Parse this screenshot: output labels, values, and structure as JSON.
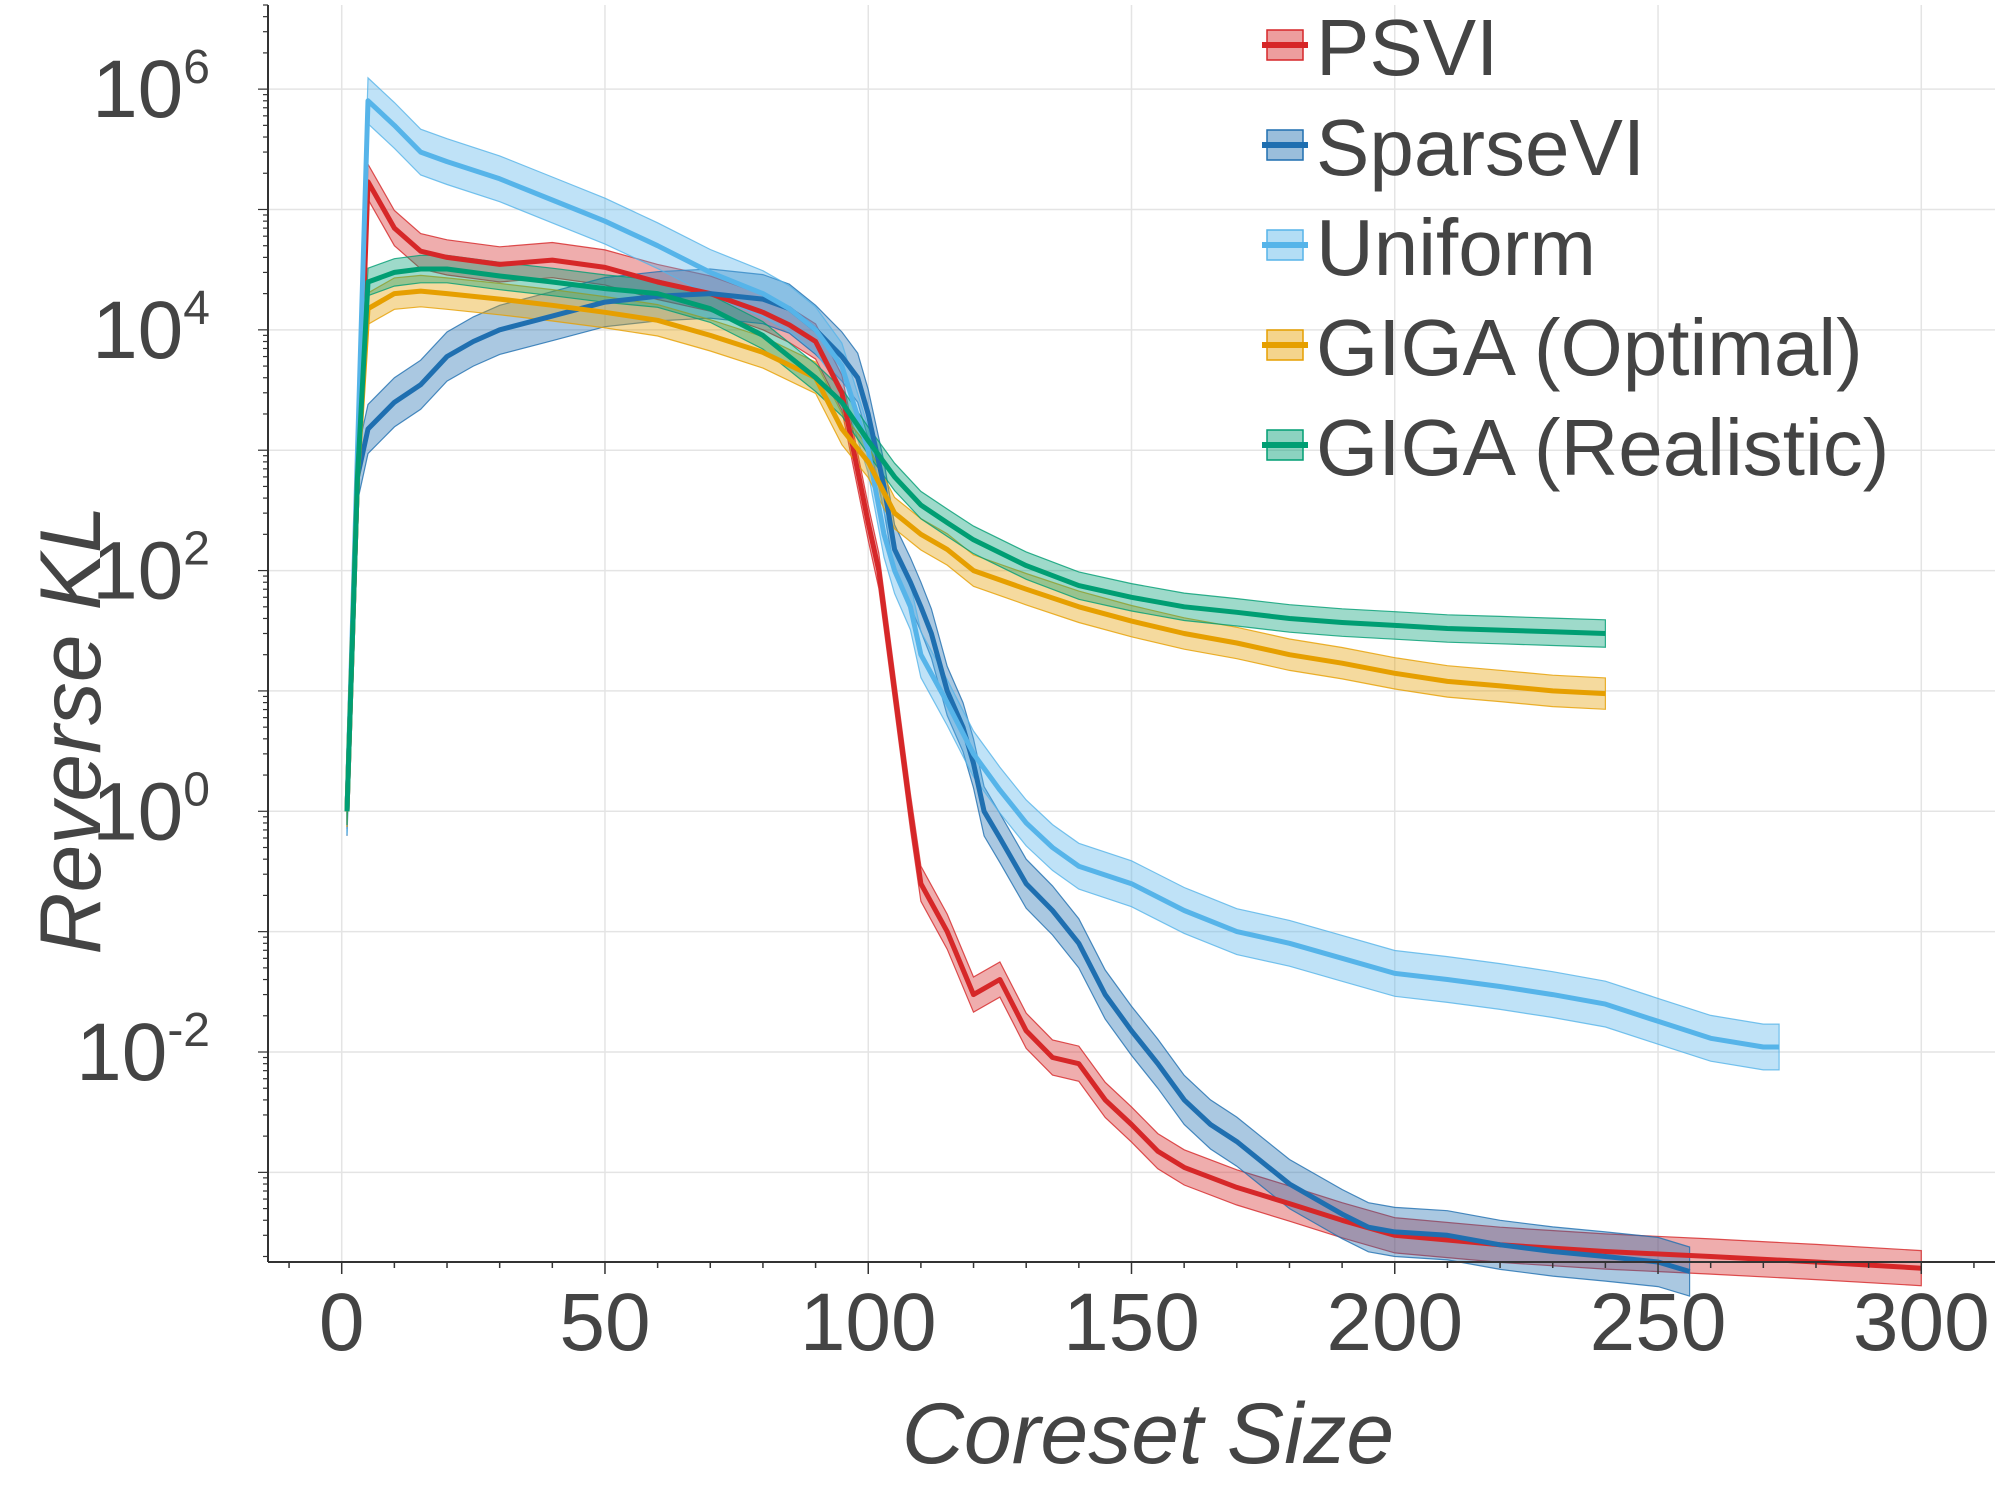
{
  "chart_data": {
    "type": "line",
    "xlabel": "Coreset Size",
    "ylabel": "Reverse KL",
    "x_scale": "linear",
    "y_scale": "log",
    "xlim": [
      -14,
      314
    ],
    "ylim": [
      0.00018,
      5000000
    ],
    "x_ticks": [
      0,
      50,
      100,
      150,
      200,
      250,
      300
    ],
    "x_tick_labels": [
      "0",
      "50",
      "100",
      "150",
      "200",
      "250",
      "300"
    ],
    "y_ticks": [
      0.01,
      1,
      100,
      10000,
      1000000
    ],
    "y_tick_labels": [
      {
        "base": "10",
        "exp": "-2"
      },
      {
        "base": "10",
        "exp": "0"
      },
      {
        "base": "10",
        "exp": "2"
      },
      {
        "base": "10",
        "exp": "4"
      },
      {
        "base": "10",
        "exp": "6"
      }
    ],
    "grid": true,
    "legend_position": "top-right",
    "series": [
      {
        "name": "PSVI",
        "color": "#d62728",
        "points": [
          [
            1,
            1
          ],
          [
            3,
            600
          ],
          [
            5,
            170000
          ],
          [
            10,
            70000
          ],
          [
            15,
            45000
          ],
          [
            20,
            40000
          ],
          [
            30,
            35000
          ],
          [
            40,
            38000
          ],
          [
            50,
            33000
          ],
          [
            60,
            25000
          ],
          [
            70,
            20000
          ],
          [
            80,
            14000
          ],
          [
            85,
            11000
          ],
          [
            90,
            8000
          ],
          [
            95,
            3000
          ],
          [
            100,
            250
          ],
          [
            102,
            100
          ],
          [
            105,
            10
          ],
          [
            108,
            1
          ],
          [
            110,
            0.25
          ],
          [
            115,
            0.1
          ],
          [
            120,
            0.03
          ],
          [
            125,
            0.04
          ],
          [
            130,
            0.015
          ],
          [
            135,
            0.009
          ],
          [
            140,
            0.008
          ],
          [
            145,
            0.004
          ],
          [
            150,
            0.0025
          ],
          [
            155,
            0.0015
          ],
          [
            160,
            0.0011
          ],
          [
            170,
            0.00075
          ],
          [
            180,
            0.00055
          ],
          [
            190,
            0.0004
          ],
          [
            200,
            0.0003
          ],
          [
            220,
            0.00025
          ],
          [
            240,
            0.00022
          ],
          [
            260,
            0.0002
          ],
          [
            280,
            0.00018
          ],
          [
            300,
            0.00016
          ]
        ],
        "band_ratio": 1.4
      },
      {
        "name": "SparseVI",
        "color": "#1f6fb0",
        "points": [
          [
            1,
            1
          ],
          [
            3,
            600
          ],
          [
            5,
            1500
          ],
          [
            10,
            2500
          ],
          [
            15,
            3500
          ],
          [
            20,
            6000
          ],
          [
            25,
            8000
          ],
          [
            30,
            10000
          ],
          [
            40,
            13000
          ],
          [
            50,
            17000
          ],
          [
            60,
            19000
          ],
          [
            70,
            20000
          ],
          [
            80,
            18000
          ],
          [
            85,
            15000
          ],
          [
            90,
            10000
          ],
          [
            95,
            6000
          ],
          [
            98,
            4000
          ],
          [
            100,
            2000
          ],
          [
            103,
            500
          ],
          [
            105,
            150
          ],
          [
            108,
            80
          ],
          [
            110,
            50
          ],
          [
            112,
            30
          ],
          [
            115,
            10
          ],
          [
            118,
            5
          ],
          [
            120,
            2.5
          ],
          [
            122,
            1
          ],
          [
            125,
            0.6
          ],
          [
            130,
            0.25
          ],
          [
            135,
            0.15
          ],
          [
            140,
            0.08
          ],
          [
            145,
            0.03
          ],
          [
            150,
            0.015
          ],
          [
            155,
            0.008
          ],
          [
            160,
            0.004
          ],
          [
            165,
            0.0025
          ],
          [
            170,
            0.0018
          ],
          [
            175,
            0.0012
          ],
          [
            180,
            0.0008
          ],
          [
            185,
            0.0006
          ],
          [
            190,
            0.00045
          ],
          [
            195,
            0.00035
          ],
          [
            200,
            0.00032
          ],
          [
            210,
            0.0003
          ],
          [
            220,
            0.00025
          ],
          [
            230,
            0.00022
          ],
          [
            240,
            0.0002
          ],
          [
            250,
            0.00018
          ],
          [
            256,
            0.00015
          ]
        ],
        "band_ratio": 1.6
      },
      {
        "name": "Uniform",
        "color": "#56b4e9",
        "points": [
          [
            1,
            1
          ],
          [
            3,
            1000
          ],
          [
            5,
            800000
          ],
          [
            10,
            500000
          ],
          [
            15,
            300000
          ],
          [
            20,
            250000
          ],
          [
            30,
            180000
          ],
          [
            40,
            120000
          ],
          [
            50,
            80000
          ],
          [
            60,
            50000
          ],
          [
            70,
            30000
          ],
          [
            80,
            20000
          ],
          [
            85,
            15000
          ],
          [
            90,
            10000
          ],
          [
            95,
            5000
          ],
          [
            100,
            1000
          ],
          [
            103,
            200
          ],
          [
            105,
            100
          ],
          [
            108,
            50
          ],
          [
            110,
            20
          ],
          [
            115,
            8
          ],
          [
            120,
            3
          ],
          [
            125,
            1.5
          ],
          [
            130,
            0.8
          ],
          [
            135,
            0.5
          ],
          [
            140,
            0.35
          ],
          [
            150,
            0.25
          ],
          [
            160,
            0.15
          ],
          [
            170,
            0.1
          ],
          [
            180,
            0.08
          ],
          [
            190,
            0.06
          ],
          [
            200,
            0.045
          ],
          [
            210,
            0.04
          ],
          [
            220,
            0.035
          ],
          [
            230,
            0.03
          ],
          [
            240,
            0.025
          ],
          [
            250,
            0.018
          ],
          [
            260,
            0.013
          ],
          [
            270,
            0.011
          ],
          [
            273,
            0.011
          ]
        ],
        "band_ratio": 1.55
      },
      {
        "name": "GIGA (Optimal)",
        "color": "#e69f00",
        "points": [
          [
            1,
            1
          ],
          [
            3,
            600
          ],
          [
            5,
            15000
          ],
          [
            10,
            20000
          ],
          [
            15,
            21000
          ],
          [
            20,
            20000
          ],
          [
            30,
            18000
          ],
          [
            40,
            16000
          ],
          [
            50,
            14000
          ],
          [
            60,
            12000
          ],
          [
            70,
            9000
          ],
          [
            80,
            6500
          ],
          [
            90,
            4000
          ],
          [
            95,
            1500
          ],
          [
            100,
            800
          ],
          [
            105,
            300
          ],
          [
            110,
            200
          ],
          [
            115,
            150
          ],
          [
            120,
            100
          ],
          [
            130,
            70
          ],
          [
            140,
            50
          ],
          [
            150,
            38
          ],
          [
            160,
            30
          ],
          [
            170,
            25
          ],
          [
            180,
            20
          ],
          [
            190,
            17
          ],
          [
            200,
            14
          ],
          [
            210,
            12
          ],
          [
            220,
            11
          ],
          [
            230,
            10
          ],
          [
            240,
            9.5
          ]
        ],
        "band_ratio": 1.35
      },
      {
        "name": "GIGA (Realistic)",
        "color": "#009e73",
        "points": [
          [
            1,
            1
          ],
          [
            3,
            600
          ],
          [
            5,
            25000
          ],
          [
            10,
            30000
          ],
          [
            15,
            32000
          ],
          [
            20,
            32000
          ],
          [
            30,
            28000
          ],
          [
            40,
            25000
          ],
          [
            50,
            22000
          ],
          [
            60,
            20000
          ],
          [
            70,
            15000
          ],
          [
            80,
            9000
          ],
          [
            90,
            4000
          ],
          [
            95,
            2500
          ],
          [
            100,
            1200
          ],
          [
            105,
            600
          ],
          [
            110,
            350
          ],
          [
            115,
            250
          ],
          [
            120,
            180
          ],
          [
            130,
            110
          ],
          [
            140,
            75
          ],
          [
            150,
            60
          ],
          [
            160,
            50
          ],
          [
            170,
            45
          ],
          [
            180,
            40
          ],
          [
            190,
            37
          ],
          [
            200,
            35
          ],
          [
            210,
            33
          ],
          [
            220,
            32
          ],
          [
            230,
            31
          ],
          [
            240,
            30
          ]
        ],
        "band_ratio": 1.3
      }
    ]
  }
}
